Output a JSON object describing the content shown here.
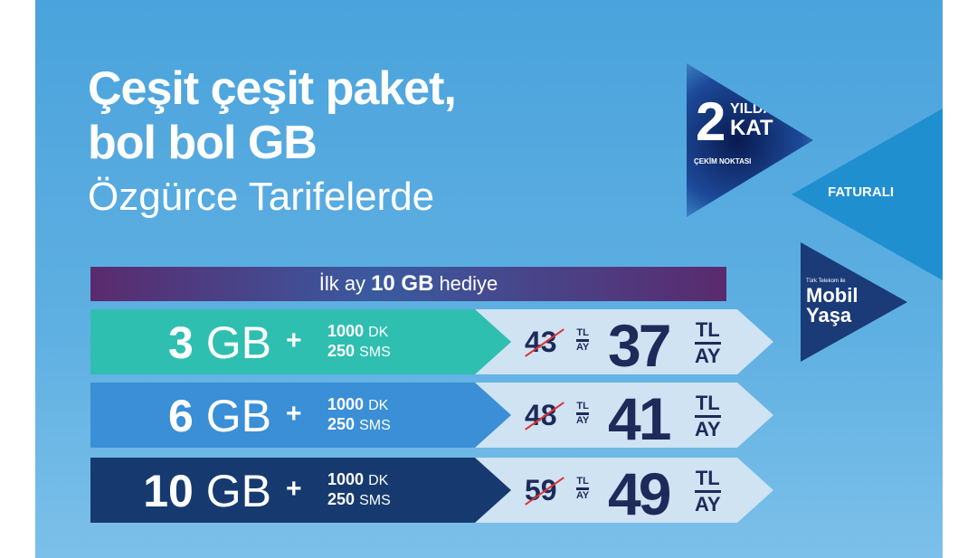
{
  "headline": {
    "line1": "Çeşit çeşit paket,",
    "line2": "bol bol GB",
    "line3": "Özgürce Tarifelerde"
  },
  "banner": {
    "pre": "İlk ay",
    "bold": "10 GB",
    "post": "hediye"
  },
  "badge": {
    "number": "2",
    "word1": "YILDA",
    "word2": "KAT",
    "caption": "ÇEKİM NOKTASI"
  },
  "faturali": "FATURALI",
  "mobil": {
    "small": "Türk Telekom ile",
    "line1": "Mobil",
    "line2": "Yaşa"
  },
  "plans": [
    {
      "gb": "3",
      "unit": "GB",
      "plus": "+",
      "minutes": "1000",
      "min_unit": "DK",
      "sms": "250",
      "sms_unit": "SMS",
      "old_price": "43",
      "new_price": "37",
      "cur": "TL",
      "per": "AY",
      "color": "#2fbfb0"
    },
    {
      "gb": "6",
      "unit": "GB",
      "plus": "+",
      "minutes": "1000",
      "min_unit": "DK",
      "sms": "250",
      "sms_unit": "SMS",
      "old_price": "48",
      "new_price": "41",
      "cur": "TL",
      "per": "AY",
      "color": "#3a8fd6"
    },
    {
      "gb": "10",
      "unit": "GB",
      "plus": "+",
      "minutes": "1000",
      "min_unit": "DK",
      "sms": "250",
      "sms_unit": "SMS",
      "old_price": "59",
      "new_price": "49",
      "cur": "TL",
      "per": "AY",
      "color": "#163a70"
    }
  ]
}
